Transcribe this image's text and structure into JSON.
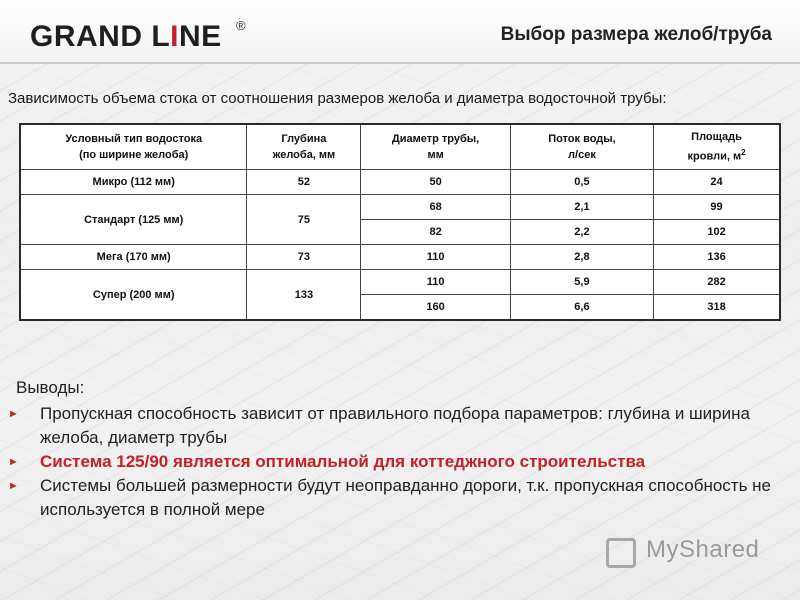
{
  "header": {
    "logo_main": "GRAND L",
    "logo_accent": "I",
    "logo_end": "NE",
    "logo_registered": "®",
    "title": "Выбор размера желоб/труба"
  },
  "subtitle": "Зависимость объема стока от соотношения размеров желоба и диаметра водосточной трубы:",
  "table": {
    "headers": {
      "type_line1": "Условный тип водостока",
      "type_line2": "(по ширине желоба)",
      "depth_line1": "Глубина",
      "depth_line2": "желоба, мм",
      "diameter_line1": "Диаметр трубы,",
      "diameter_line2": "мм",
      "flow_line1": "Поток воды,",
      "flow_line2": "л/сек",
      "area_line1": "Площадь",
      "area_line2": "кровли, м",
      "area_sup": "2"
    },
    "rows": [
      {
        "type": "Микро (112 мм)",
        "depth": "52",
        "diameter": "50",
        "flow": "0,5",
        "area": "24"
      },
      {
        "type": "Стандарт (125 мм)",
        "depth": "75",
        "diameter": "68",
        "flow": "2,1",
        "area": "99"
      },
      {
        "diameter": "82",
        "flow": "2,2",
        "area": "102"
      },
      {
        "type": "Мега (170 мм)",
        "depth": "73",
        "diameter": "110",
        "flow": "2,8",
        "area": "136"
      },
      {
        "type": "Супер (200 мм)",
        "depth": "133",
        "diameter": "110",
        "flow": "5,9",
        "area": "282"
      },
      {
        "diameter": "160",
        "flow": "6,6",
        "area": "318"
      }
    ]
  },
  "conclusions": {
    "title": "Выводы:",
    "bullet_marker": "►",
    "items": [
      "Пропускная способность зависит от правильного подбора параметров: глубина и ширина желоба, диаметр трубы",
      "Система 125/90 является оптимальной для коттеджного строительства",
      "Системы большей размерности будут неоправданно дороги, т.к. пропускная способность не используется в полной мере"
    ]
  },
  "watermark": "MyShared",
  "colors": {
    "accent": "#c62026",
    "text": "#222222"
  }
}
